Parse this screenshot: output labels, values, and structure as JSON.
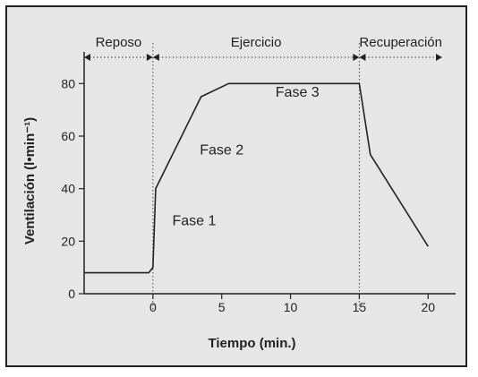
{
  "chart_data": {
    "type": "line",
    "xlabel": "Tiempo (min.)",
    "ylabel": "Ventilación (l•min⁻¹)",
    "xlim": [
      -5,
      22
    ],
    "ylim": [
      0,
      90
    ],
    "x_ticks": [
      0,
      5,
      10,
      15,
      20
    ],
    "y_ticks": [
      0,
      20,
      40,
      60,
      80
    ],
    "series": [
      {
        "x": [
          -5,
          -0.3,
          0,
          0.2,
          3.5,
          5.5,
          15,
          15.8,
          20
        ],
        "y": [
          8,
          8,
          10,
          40,
          75,
          80,
          80,
          53,
          18
        ]
      }
    ],
    "phase_boundaries": [
      0,
      15
    ],
    "periods": [
      {
        "label": "Reposo",
        "x_start": -5,
        "x_end": 0
      },
      {
        "label": "Ejercicio",
        "x_start": 0,
        "x_end": 15
      },
      {
        "label": "Recuperación",
        "x_start": 15,
        "x_end": 22
      }
    ],
    "annotations": [
      {
        "text": "Fase 1",
        "x": 3,
        "y": 26
      },
      {
        "text": "Fase 2",
        "x": 5,
        "y": 53
      },
      {
        "text": "Fase 3",
        "x": 10.5,
        "y": 75
      }
    ],
    "colors": {
      "line": "#222222",
      "background": "#e6e6e6"
    }
  }
}
